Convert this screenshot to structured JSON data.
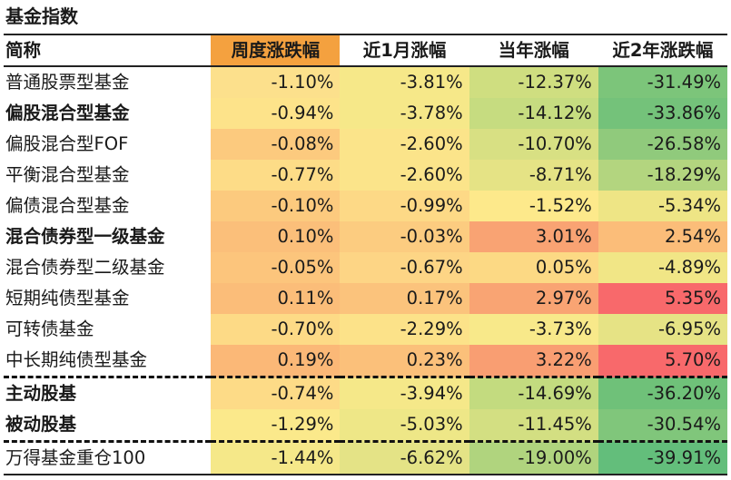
{
  "title": "基金指数",
  "header": {
    "name": "简称",
    "col1": "周度涨跌幅",
    "col2": "近1月涨幅",
    "col3": "当年涨幅",
    "col4": "近2年涨跌幅"
  },
  "header_colors": {
    "name": "#ffffff",
    "col1": "#f4a13f",
    "col2": "#ffffff",
    "col3": "#ffffff",
    "col4": "#ffffff"
  },
  "rows": [
    {
      "name": "普通股票型基金",
      "v1": "-1.10%",
      "v2": "-3.81%",
      "v3": "-12.37%",
      "v4": "-31.49%",
      "c1": "#fce08c",
      "c2": "#f6e889",
      "c3": "#cfde80",
      "c4": "#7cc57a"
    },
    {
      "name": "偏股混合型基金",
      "v1": "-0.94%",
      "v2": "-3.78%",
      "v3": "-14.12%",
      "v4": "-33.86%",
      "c1": "#fde38a",
      "c2": "#f6e889",
      "c3": "#c6dc80",
      "c4": "#74c27a"
    },
    {
      "name": "偏股混合型FOF",
      "v1": "-0.08%",
      "v2": "-2.60%",
      "v3": "-10.70%",
      "v4": "-26.58%",
      "c1": "#fcca7e",
      "c2": "#fbe48a",
      "c3": "#d8e083",
      "c4": "#90ca7c"
    },
    {
      "name": "平衡混合型基金",
      "v1": "-0.77%",
      "v2": "-2.60%",
      "v3": "-8.71%",
      "v4": "-18.29%",
      "c1": "#fddc87",
      "c2": "#fbe48a",
      "c3": "#e5e385",
      "c4": "#b3d57f"
    },
    {
      "name": "偏债混合型基金",
      "v1": "-0.10%",
      "v2": "-0.99%",
      "v3": "-1.52%",
      "v4": "-5.34%",
      "c1": "#fcca7e",
      "c2": "#fdd986",
      "c3": "#fde98b",
      "c4": "#eee585"
    },
    {
      "name": "混合债券型一级基金",
      "v1": "0.10%",
      "v2": "-0.03%",
      "v3": "3.01%",
      "v4": "2.54%",
      "c1": "#fbbf7a",
      "c2": "#fccc80",
      "c3": "#f9a373",
      "c4": "#fbbd79"
    },
    {
      "name": "混合债券型二级基金",
      "v1": "-0.05%",
      "v2": "-0.67%",
      "v3": "0.05%",
      "v4": "-4.89%",
      "c1": "#fcc57c",
      "c2": "#fdd585",
      "c3": "#fcd984",
      "c4": "#f1e686"
    },
    {
      "name": "短期纯债型基金",
      "v1": "0.11%",
      "v2": "0.17%",
      "v3": "2.97%",
      "v4": "5.35%",
      "c1": "#fbbd79",
      "c2": "#fbc37c",
      "c3": "#f9a473",
      "c4": "#f8696b"
    },
    {
      "name": "可转债基金",
      "v1": "-0.70%",
      "v2": "-2.29%",
      "v3": "-3.73%",
      "v4": "-6.95%",
      "c1": "#fdda86",
      "c2": "#fce289",
      "c3": "#f8e98a",
      "c4": "#e6e385"
    },
    {
      "name": "中长期纯债型基金",
      "v1": "0.19%",
      "v2": "0.23%",
      "v3": "3.22%",
      "v4": "5.70%",
      "c1": "#fbb877",
      "c2": "#fbc07a",
      "c3": "#f99e72",
      "c4": "#f8696b"
    },
    {
      "name": "主动股基",
      "v1": "-0.74%",
      "v2": "-3.94%",
      "v3": "-14.69%",
      "v4": "-36.20%",
      "c1": "#fddb87",
      "c2": "#f5e889",
      "c3": "#c3db7f",
      "c4": "#6fc179"
    },
    {
      "name": "被动股基",
      "v1": "-1.29%",
      "v2": "-5.03%",
      "v3": "-11.45%",
      "v4": "-30.54%",
      "c1": "#fbe98b",
      "c2": "#eee787",
      "c3": "#d3df82",
      "c4": "#80c67b"
    },
    {
      "name": "万得基金重仓100",
      "v1": "-1.44%",
      "v2": "-6.62%",
      "v3": "-19.00%",
      "v4": "-39.91%",
      "c1": "#f5e889",
      "c2": "#e4e386",
      "c3": "#b0d47e",
      "c4": "#63be7b"
    }
  ]
}
